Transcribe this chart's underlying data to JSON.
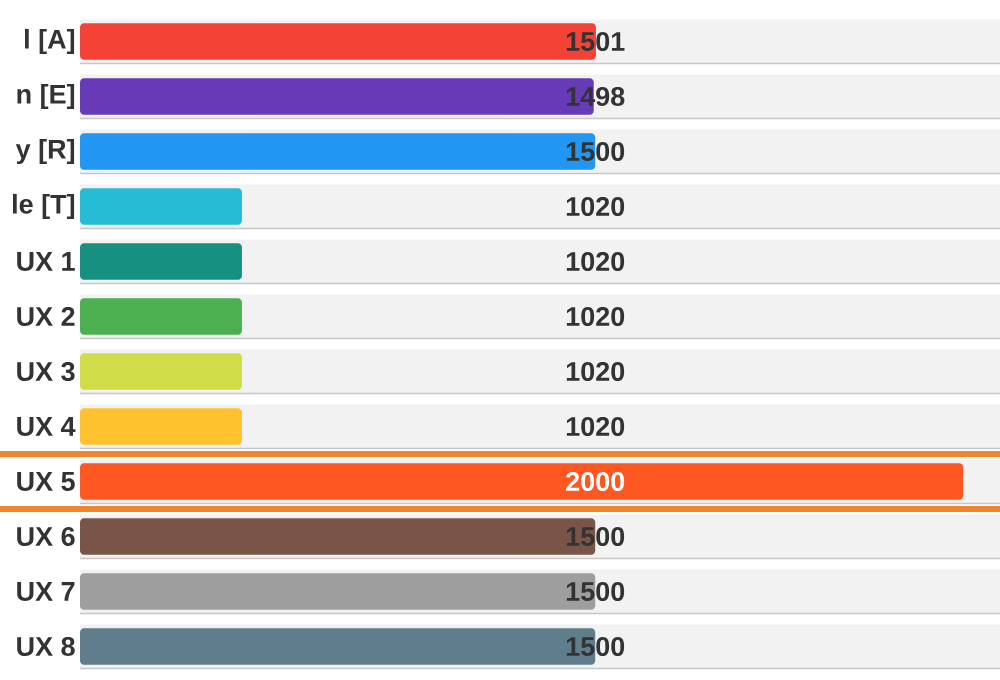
{
  "chart_data": {
    "type": "bar",
    "orientation": "horizontal",
    "categories": [
      "l [A]",
      "n [E]",
      "y [R]",
      "le [T]",
      "UX 1",
      "UX 2",
      "UX 3",
      "UX 4",
      "UX 5",
      "UX 6",
      "UX 7",
      "UX 8"
    ],
    "values": [
      1501,
      1498,
      1500,
      1020,
      1020,
      1020,
      1020,
      1020,
      2000,
      1500,
      1500,
      1500
    ],
    "colors": [
      "#f44336",
      "#673ab7",
      "#2196f3",
      "#26bcd6",
      "#16907f",
      "#4caf50",
      "#d0dc48",
      "#ffc12e",
      "#ff5722",
      "#795548",
      "#9e9e9e",
      "#607d8b"
    ],
    "xlim": [
      800,
      2050
    ],
    "data_labels": true,
    "tick_labels": "y"
  }
}
